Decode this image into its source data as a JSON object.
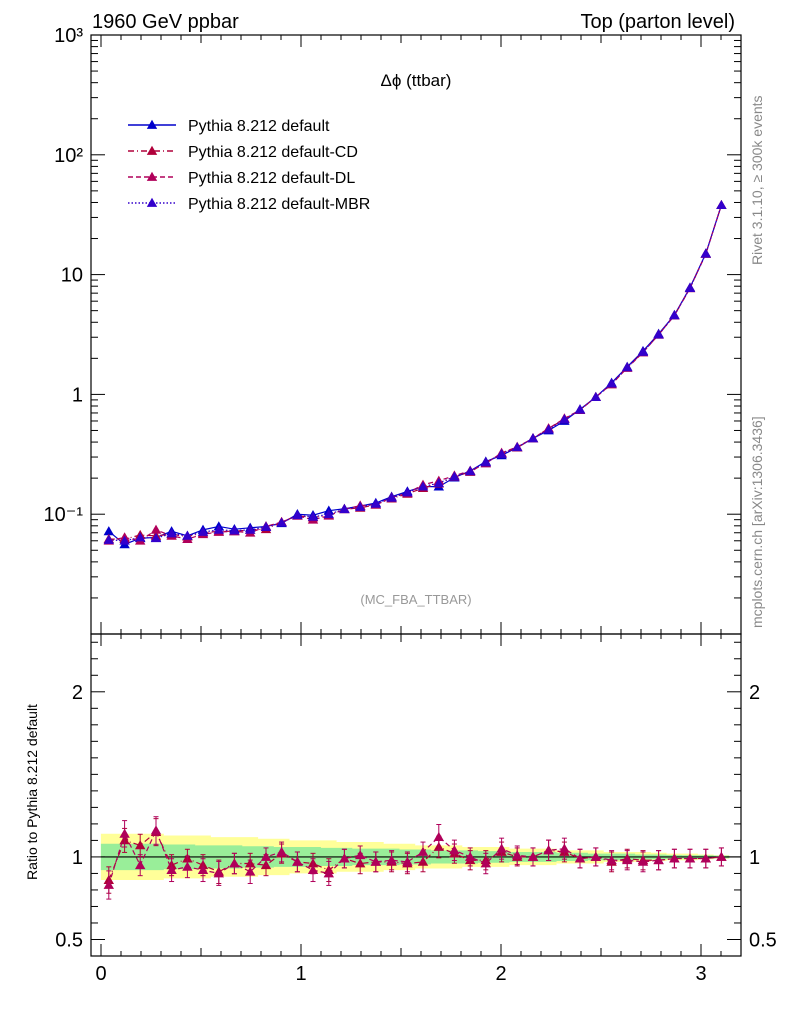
{
  "header": {
    "left_label": "1960 GeV ppbar",
    "right_label": "Top (parton level)"
  },
  "side_labels": {
    "rivet": "Rivet 3.1.10, ≥ 300k events",
    "mcplots": "mcplots.cern.ch [arXiv:1306.3436]"
  },
  "plot_title": "Δϕ (ttbar)",
  "analysis_label": "(MC_FBA_TTBAR)",
  "ratio_ylabel": "Ratio to Pythia 8.212 default",
  "colors": {
    "default": "#0000cc",
    "cd": "#b0003a",
    "dl": "#b0005a",
    "mbr": "#3300cc",
    "band_yellow": "#ffff99",
    "band_green": "#99ee99"
  },
  "chart_data": [
    {
      "type": "line",
      "panel": "main",
      "yscale": "log",
      "xlim": [
        -0.05,
        3.2
      ],
      "ylim": [
        0.01,
        1000
      ],
      "y_tick_labels": [
        "10⁻¹",
        "1",
        "10",
        "10²",
        "10³"
      ],
      "x": [
        0.039,
        0.118,
        0.196,
        0.275,
        0.353,
        0.432,
        0.51,
        0.589,
        0.667,
        0.746,
        0.825,
        0.903,
        0.982,
        1.06,
        1.139,
        1.217,
        1.296,
        1.374,
        1.453,
        1.532,
        1.61,
        1.689,
        1.767,
        1.846,
        1.924,
        2.003,
        2.081,
        2.16,
        2.238,
        2.317,
        2.395,
        2.474,
        2.553,
        2.631,
        2.71,
        2.788,
        2.867,
        2.945,
        3.024,
        3.102
      ],
      "series": [
        {
          "name": "Pythia 8.212 default",
          "style": "solid",
          "values": [
            0.072,
            0.056,
            0.063,
            0.064,
            0.072,
            0.066,
            0.074,
            0.079,
            0.075,
            0.077,
            0.079,
            0.084,
            0.1,
            0.098,
            0.107,
            0.111,
            0.117,
            0.124,
            0.14,
            0.155,
            0.17,
            0.17,
            0.202,
            0.23,
            0.275,
            0.31,
            0.36,
            0.43,
            0.5,
            0.6,
            0.75,
            0.95,
            1.25,
            1.7,
            2.3,
            3.2,
            4.6,
            7.8,
            15,
            38
          ]
        },
        {
          "name": "Pythia 8.212 default-CD",
          "style": "dashdot",
          "values": [
            0.062,
            0.062,
            0.067,
            0.066,
            0.068,
            0.065,
            0.07,
            0.072,
            0.072,
            0.074,
            0.075,
            0.086,
            0.097,
            0.094,
            0.098,
            0.11,
            0.113,
            0.12,
            0.135,
            0.148,
            0.165,
            0.18,
            0.205,
            0.225,
            0.27,
            0.32,
            0.36,
            0.43,
            0.52,
            0.62,
            0.74,
            0.95,
            1.21,
            1.68,
            2.25,
            3.15,
            4.55,
            7.7,
            14.9,
            38
          ]
        },
        {
          "name": "Pythia 8.212 default-DL",
          "style": "dashed",
          "values": [
            0.06,
            0.064,
            0.06,
            0.074,
            0.066,
            0.062,
            0.068,
            0.071,
            0.072,
            0.07,
            0.079,
            0.086,
            0.097,
            0.09,
            0.097,
            0.11,
            0.118,
            0.12,
            0.138,
            0.15,
            0.176,
            0.19,
            0.21,
            0.23,
            0.265,
            0.325,
            0.365,
            0.43,
            0.52,
            0.63,
            0.74,
            0.95,
            1.22,
            1.66,
            2.24,
            3.15,
            4.56,
            7.7,
            14.9,
            38
          ]
        },
        {
          "name": "Pythia 8.212 default-MBR",
          "style": "dotted",
          "values": [
            0.061,
            0.06,
            0.064,
            0.063,
            0.069,
            0.066,
            0.071,
            0.074,
            0.073,
            0.074,
            0.078,
            0.085,
            0.098,
            0.095,
            0.1,
            0.11,
            0.115,
            0.122,
            0.137,
            0.152,
            0.17,
            0.182,
            0.206,
            0.228,
            0.27,
            0.318,
            0.362,
            0.43,
            0.51,
            0.62,
            0.745,
            0.95,
            1.23,
            1.68,
            2.26,
            3.16,
            4.57,
            7.72,
            14.95,
            38
          ]
        }
      ]
    },
    {
      "type": "line",
      "panel": "ratio",
      "xlim": [
        -0.05,
        3.2
      ],
      "ylim": [
        0.4,
        2.35
      ],
      "x_tick_labels": [
        "0",
        "1",
        "2",
        "3"
      ],
      "y_tick_labels": [
        "0.5",
        "1",
        "2"
      ],
      "band_yellow_halfwidth": [
        0.14,
        0.14,
        0.14,
        0.14,
        0.13,
        0.13,
        0.13,
        0.12,
        0.12,
        0.12,
        0.11,
        0.11,
        0.1,
        0.1,
        0.1,
        0.09,
        0.09,
        0.09,
        0.08,
        0.08,
        0.07,
        0.07,
        0.07,
        0.06,
        0.06,
        0.06,
        0.05,
        0.05,
        0.05,
        0.04,
        0.04,
        0.04,
        0.03,
        0.03,
        0.03,
        0.025,
        0.02,
        0.02,
        0.015,
        0.01
      ],
      "band_green_halfwidth": [
        0.08,
        0.08,
        0.08,
        0.08,
        0.075,
        0.075,
        0.07,
        0.07,
        0.07,
        0.065,
        0.065,
        0.06,
        0.06,
        0.06,
        0.055,
        0.055,
        0.05,
        0.05,
        0.05,
        0.045,
        0.045,
        0.04,
        0.04,
        0.04,
        0.035,
        0.035,
        0.03,
        0.03,
        0.03,
        0.025,
        0.025,
        0.02,
        0.02,
        0.02,
        0.015,
        0.015,
        0.012,
        0.01,
        0.01,
        0.008
      ],
      "series": [
        {
          "name": "Pythia 8.212 default-CD",
          "style": "dashdot",
          "values": [
            0.86,
            1.1,
            1.07,
            1.15,
            0.95,
            0.99,
            0.95,
            0.91,
            0.96,
            0.96,
            0.95,
            1.02,
            0.97,
            0.96,
            0.92,
            0.99,
            0.96,
            0.97,
            0.97,
            0.96,
            0.97,
            1.06,
            1.02,
            0.98,
            0.98,
            1.03,
            1.0,
            1.0,
            1.04,
            1.03,
            0.99,
            1.0,
            0.97,
            0.99,
            0.98,
            0.98,
            0.99,
            0.99,
            0.99,
            1.0
          ]
        },
        {
          "name": "Pythia 8.212 default-DL",
          "style": "dashed",
          "values": [
            0.83,
            1.14,
            0.95,
            1.16,
            0.92,
            0.94,
            0.92,
            0.9,
            0.96,
            0.91,
            1.0,
            1.03,
            0.97,
            0.92,
            0.9,
            0.99,
            1.01,
            0.97,
            0.98,
            0.97,
            1.03,
            1.12,
            1.04,
            1.0,
            0.96,
            1.05,
            1.01,
            1.0,
            1.04,
            1.05,
            0.99,
            1.0,
            0.98,
            0.98,
            0.97,
            0.98,
            0.99,
            0.99,
            0.99,
            1.0
          ]
        }
      ]
    }
  ]
}
